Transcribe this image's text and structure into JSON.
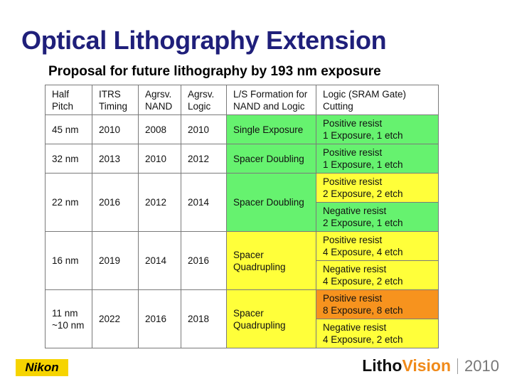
{
  "title": "Optical Lithography Extension",
  "subtitle": "Proposal for future lithography by 193 nm exposure",
  "colors": {
    "green": "#66f26f",
    "yellow": "#ffff3a",
    "orange": "#f7931e",
    "title": "#1f1f7a"
  },
  "table": {
    "headers": {
      "half_pitch": [
        "Half",
        "Pitch"
      ],
      "itrs": [
        "ITRS",
        "Timing"
      ],
      "nand": [
        "Agrsv.",
        "NAND"
      ],
      "logic": [
        "Agrsv.",
        "Logic"
      ],
      "ls": [
        "L/S Formation for",
        "NAND and Logic"
      ],
      "cutting": [
        "Logic (SRAM Gate)",
        "Cutting"
      ]
    },
    "rows": [
      {
        "pitch": [
          "45 nm"
        ],
        "itrs": "2010",
        "nand": "2008",
        "logic": "2010",
        "ls": [
          "Single Exposure"
        ],
        "ls_color": "green",
        "cut": [
          {
            "lines": [
              "Positive resist",
              "1 Exposure, 1 etch"
            ],
            "color": "green"
          }
        ]
      },
      {
        "pitch": [
          "32 nm"
        ],
        "itrs": "2013",
        "nand": "2010",
        "logic": "2012",
        "ls": [
          "Spacer Doubling"
        ],
        "ls_color": "green",
        "cut": [
          {
            "lines": [
              "Positive resist",
              "1 Exposure, 1 etch"
            ],
            "color": "green"
          }
        ]
      },
      {
        "pitch": [
          "22 nm"
        ],
        "itrs": "2016",
        "nand": "2012",
        "logic": "2014",
        "ls": [
          "Spacer Doubling"
        ],
        "ls_color": "green",
        "cut": [
          {
            "lines": [
              "Positive resist",
              "2 Exposure, 2 etch"
            ],
            "color": "yellow"
          },
          {
            "lines": [
              "Negative resist",
              "2 Exposure, 1 etch"
            ],
            "color": "green"
          }
        ]
      },
      {
        "pitch": [
          "16 nm"
        ],
        "itrs": "2019",
        "nand": "2014",
        "logic": "2016",
        "ls": [
          "Spacer",
          "Quadrupling"
        ],
        "ls_color": "yellow",
        "cut": [
          {
            "lines": [
              "Positive resist",
              "4 Exposure, 4 etch"
            ],
            "color": "yellow"
          },
          {
            "lines": [
              "Negative resist",
              "4 Exposure, 2 etch"
            ],
            "color": "yellow"
          }
        ]
      },
      {
        "pitch": [
          "11 nm",
          "~10 nm"
        ],
        "itrs": "2022",
        "nand": "2016",
        "logic": "2018",
        "ls": [
          "Spacer",
          "Quadrupling"
        ],
        "ls_color": "yellow",
        "cut": [
          {
            "lines": [
              "Positive resist",
              "8 Exposure, 8 etch"
            ],
            "color": "orange"
          },
          {
            "lines": [
              "Negative resist",
              "4 Exposure, 2 etch"
            ],
            "color": "yellow"
          }
        ]
      }
    ]
  },
  "footer": {
    "logo": "Nikon",
    "brand_a": "Litho",
    "brand_b": "Vision",
    "year": "2010"
  }
}
